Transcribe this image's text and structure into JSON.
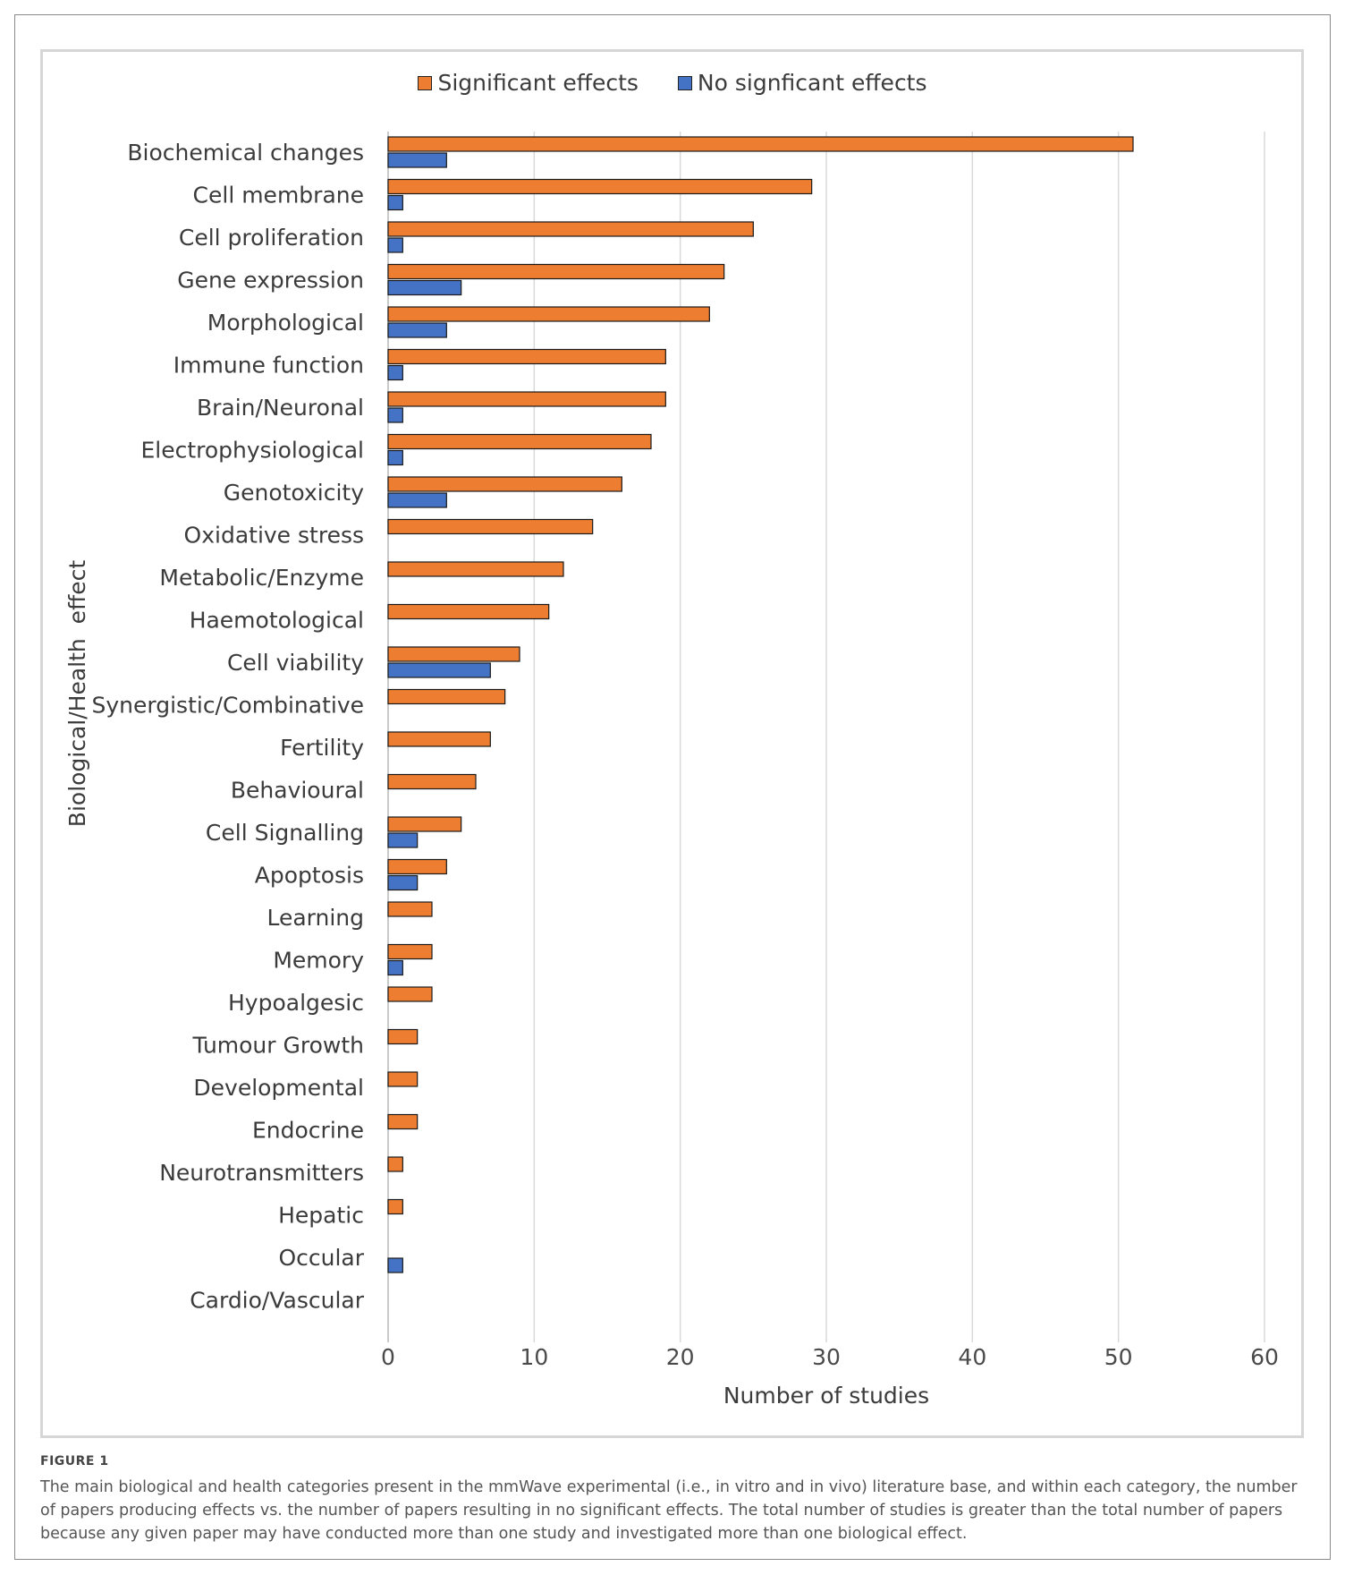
{
  "chart_data": {
    "type": "bar",
    "orientation": "horizontal",
    "xlabel": "Number of studies",
    "ylabel": "Biological/Health  effect",
    "xlim": [
      0,
      60
    ],
    "xticks": [
      0,
      10,
      20,
      30,
      40,
      50,
      60
    ],
    "grid": true,
    "legend_position": "top-center",
    "categories": [
      "Biochemical changes",
      "Cell membrane",
      "Cell proliferation",
      "Gene expression",
      "Morphological",
      "Immune function",
      "Brain/Neuronal",
      "Electrophysiological",
      "Genotoxicity",
      "Oxidative stress",
      "Metabolic/Enzyme",
      "Haemotological",
      "Cell viability",
      "Synergistic/Combinative",
      "Fertility",
      "Behavioural",
      "Cell Signalling",
      "Apoptosis",
      "Learning",
      "Memory",
      "Hypoalgesic",
      "Tumour Growth",
      "Developmental",
      "Endocrine",
      "Neurotransmitters",
      "Hepatic",
      "Occular",
      "Cardio/Vascular"
    ],
    "series": [
      {
        "name": "Significant effects",
        "color": "#ED7D31",
        "values": [
          51,
          29,
          25,
          23,
          22,
          19,
          19,
          18,
          16,
          14,
          12,
          11,
          9,
          8,
          7,
          6,
          5,
          4,
          3,
          3,
          3,
          2,
          2,
          2,
          1,
          1,
          0,
          0
        ]
      },
      {
        "name": "No signficant effects",
        "color": "#4472C4",
        "values": [
          4,
          1,
          1,
          5,
          4,
          1,
          1,
          1,
          4,
          0,
          0,
          0,
          7,
          0,
          0,
          0,
          2,
          2,
          0,
          1,
          0,
          0,
          0,
          0,
          0,
          0,
          1,
          0
        ]
      }
    ]
  },
  "caption": {
    "label": "FIGURE 1",
    "text": "The main biological and health categories present in the mmWave experimental (i.e., in vitro and in vivo) literature base, and within each category, the number of papers producing effects vs. the number of papers resulting in no significant effects. The total number of studies is greater than the total number of papers because any given paper may have conducted more than one study and investigated more than one biological effect."
  }
}
